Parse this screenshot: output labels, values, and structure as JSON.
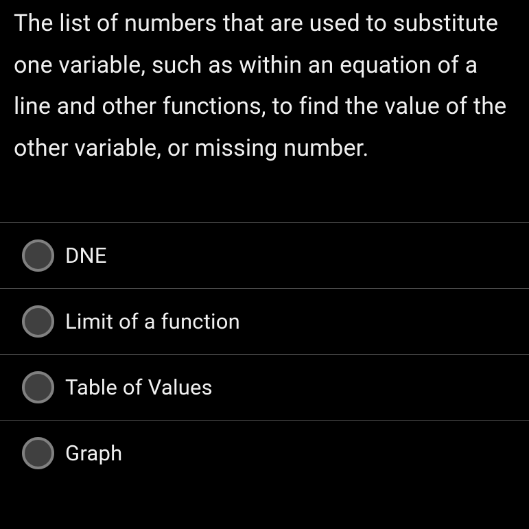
{
  "question": {
    "text": "The list of numbers that are used to substitute one variable, such as within an equation of a line and other functions, to find the value of the other variable, or missing number.",
    "text_color": "#f0f0f0",
    "background_color": "#000000",
    "fontsize": 34,
    "line_height": 1.78
  },
  "options": [
    {
      "label": "DNE",
      "selected": false
    },
    {
      "label": "Limit of a function",
      "selected": false
    },
    {
      "label": "Table of Values",
      "selected": false
    },
    {
      "label": "Graph",
      "selected": false
    }
  ],
  "styling": {
    "radio_outer_size": 47,
    "radio_border_color": "#808080",
    "radio_border_width": 4,
    "radio_fill_color": "#404040",
    "divider_color": "#4a4a4a",
    "option_fontsize": 31,
    "option_text_color": "#f0f0f0"
  }
}
